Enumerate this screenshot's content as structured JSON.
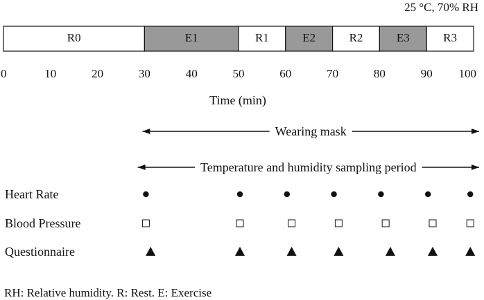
{
  "header": {
    "condition": "25 °C, 70% RH"
  },
  "timeline": {
    "range": [
      0,
      100
    ],
    "ticks": [
      0,
      10,
      20,
      30,
      40,
      50,
      60,
      70,
      80,
      90,
      100
    ],
    "axis_label": "Time (min)",
    "segments": [
      {
        "label": "R0",
        "start": 0,
        "end": 30,
        "type": "rest"
      },
      {
        "label": "E1",
        "start": 30,
        "end": 50,
        "type": "exercise"
      },
      {
        "label": "R1",
        "start": 50,
        "end": 60,
        "type": "rest"
      },
      {
        "label": "E2",
        "start": 60,
        "end": 70,
        "type": "exercise"
      },
      {
        "label": "R2",
        "start": 70,
        "end": 80,
        "type": "rest"
      },
      {
        "label": "E3",
        "start": 80,
        "end": 90,
        "type": "exercise"
      },
      {
        "label": "R3",
        "start": 90,
        "end": 100,
        "type": "rest"
      }
    ],
    "colors": {
      "rest": "#ffffff",
      "exercise": "#999999"
    }
  },
  "periods": [
    {
      "label": "Wearing mask",
      "start": 30,
      "end": 100
    },
    {
      "label": "Temperature and humidity sampling period",
      "start": 29,
      "end": 100
    }
  ],
  "measurements": [
    {
      "label": "Heart Rate",
      "marker": "filled-circle",
      "times": [
        30,
        50,
        60,
        70,
        80,
        90,
        99
      ]
    },
    {
      "label": "Blood Pressure",
      "marker": "open-square",
      "times": [
        30,
        50,
        61,
        71,
        81,
        91,
        99
      ]
    },
    {
      "label": "Questionnaire",
      "marker": "filled-triangle",
      "times": [
        31,
        50,
        61,
        71,
        82,
        91,
        99
      ]
    }
  ],
  "footnote": "RH: Relative humidity. R: Rest. E: Exercise"
}
